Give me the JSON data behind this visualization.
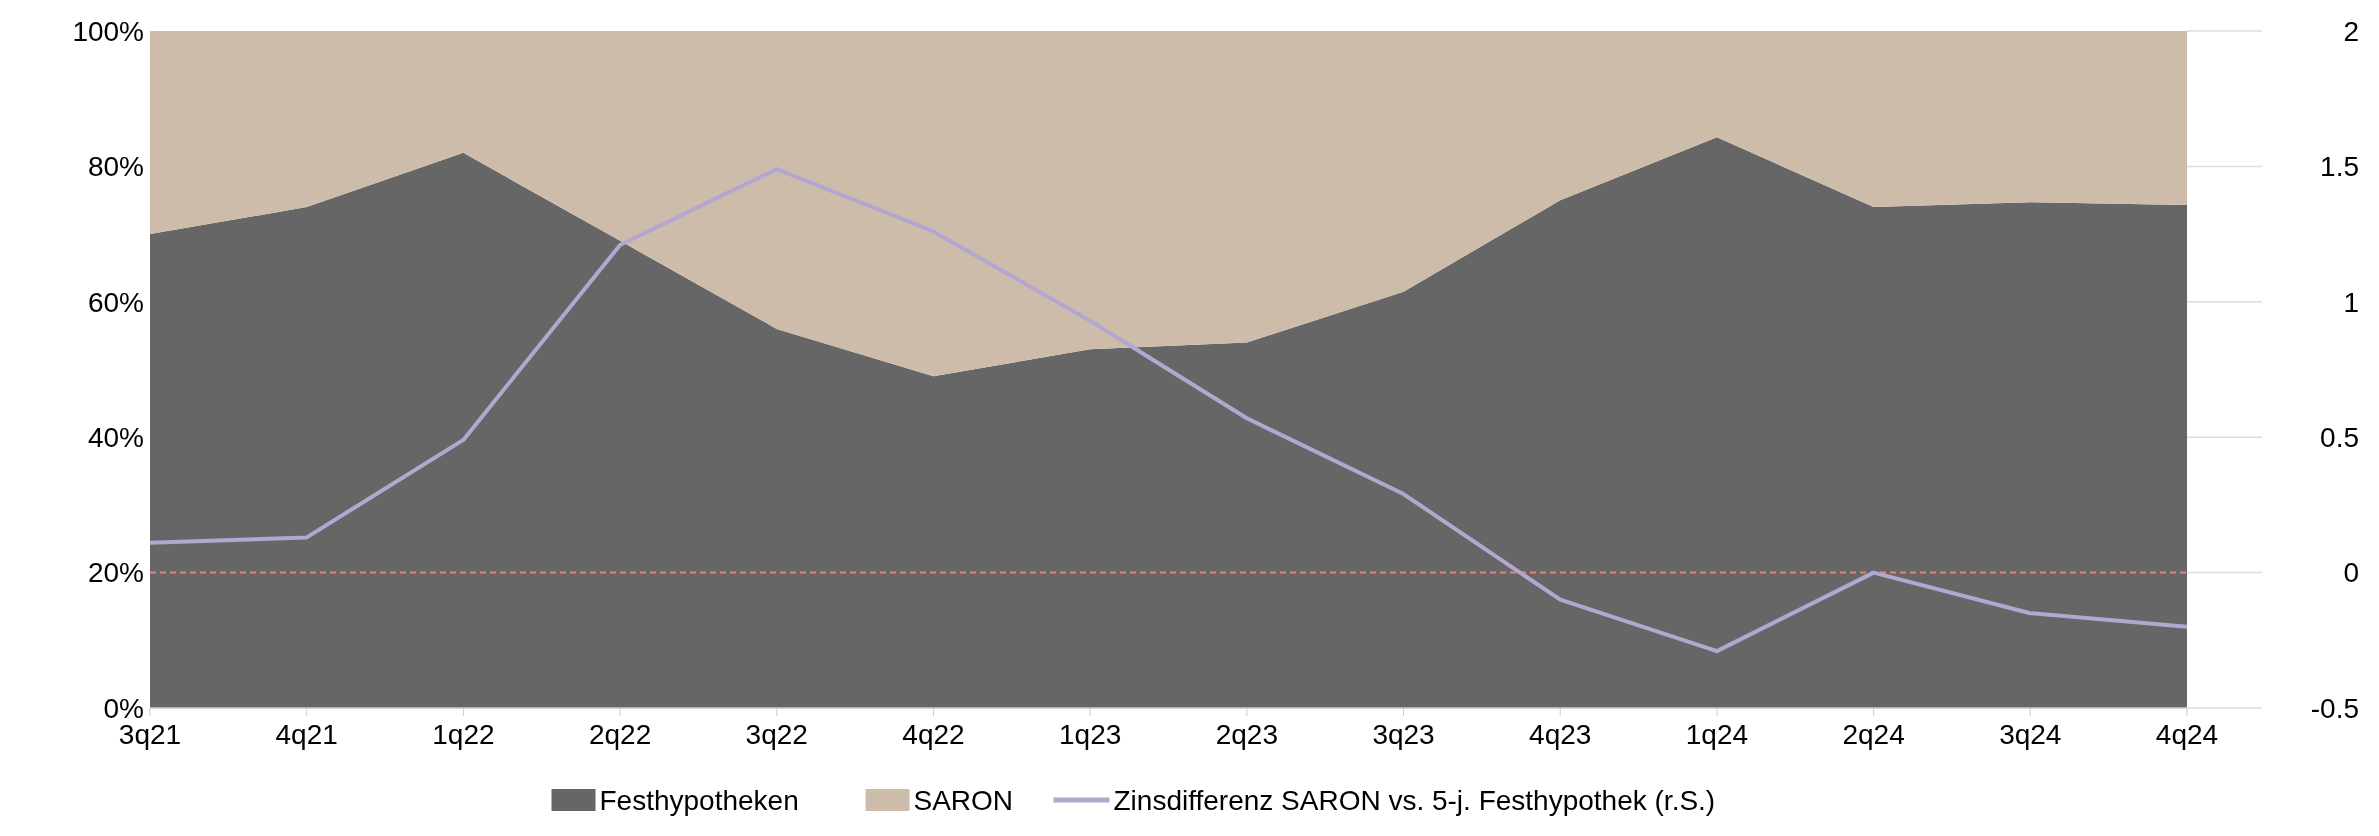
{
  "chart_data": {
    "type": "area",
    "stacked": true,
    "categories": [
      "3q21",
      "4q21",
      "1q22",
      "2q22",
      "3q22",
      "4q22",
      "1q23",
      "2q23",
      "3q23",
      "4q23",
      "1q24",
      "2q24",
      "3q24",
      "4q24"
    ],
    "series": [
      {
        "name": "Festhypotheken",
        "color": "#666666",
        "values": [
          70,
          74,
          82,
          69,
          56,
          49,
          53,
          54,
          61.5,
          75,
          84.3,
          74,
          74.7,
          74.3
        ]
      },
      {
        "name": "SARON",
        "color": "#cdbcaa",
        "values": [
          30,
          26,
          18,
          31,
          44,
          51,
          47,
          46,
          38.5,
          25,
          15.7,
          26,
          25.3,
          25.7
        ]
      },
      {
        "name": "Zinsdifferenz SARON vs. 5-j. Festhypothek (r.S.)",
        "type": "line",
        "axis": "y2",
        "color": "#b3a6d0",
        "values": [
          0.11,
          0.13,
          0.49,
          1.21,
          1.49,
          1.26,
          0.93,
          0.57,
          0.29,
          -0.1,
          -0.29,
          0,
          -0.15,
          -0.2
        ]
      }
    ],
    "ylim": [
      0,
      100
    ],
    "yticks": [
      {
        "value": 0,
        "label": "0%"
      },
      {
        "value": 20,
        "label": "20%"
      },
      {
        "value": 40,
        "label": "40%"
      },
      {
        "value": 60,
        "label": "60%"
      },
      {
        "value": 80,
        "label": "80%"
      },
      {
        "value": 100,
        "label": "100%"
      }
    ],
    "y2lim": [
      -0.5,
      2
    ],
    "y2ticks": [
      -0.5,
      0,
      0.5,
      1,
      1.5,
      2
    ],
    "ref_lines": [
      {
        "axis": "y2",
        "value": 0,
        "color": "#e8827a",
        "line_style": "dashed"
      }
    ],
    "legend": "bottom",
    "grid": false
  }
}
